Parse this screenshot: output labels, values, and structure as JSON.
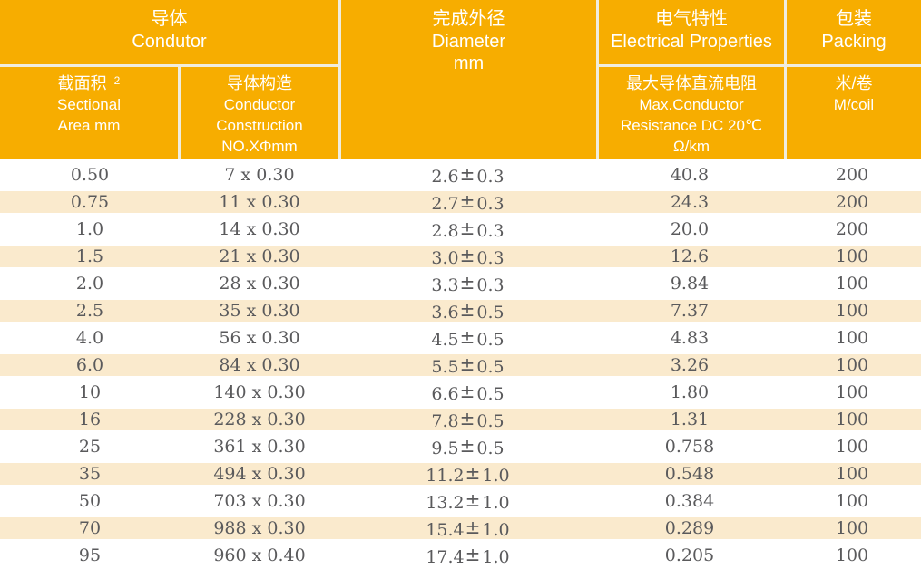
{
  "header": {
    "conductor": {
      "zh": "导体",
      "en": "Condutor"
    },
    "diameter": {
      "zh": "完成外径",
      "en": "Diameter",
      "unit": "mm"
    },
    "electrical": {
      "zh": "电气特性",
      "en": "Electrical Properties"
    },
    "packing": {
      "zh": "包装",
      "en": "Packing"
    },
    "sectional_area": {
      "zh": "截面积",
      "sup": "2",
      "en1": "Sectional",
      "en2": "Area mm"
    },
    "construction": {
      "zh": "导体构造",
      "en1": "Conductor",
      "en2": "Construction",
      "en3": "NO.XΦmm"
    },
    "resistance": {
      "zh": "最大导体直流电阻",
      "en1": "Max.Conductor",
      "en2": "Resistance DC 20℃",
      "en3": "Ω/km"
    },
    "coil": {
      "zh": "米/卷",
      "en": "M/coil"
    }
  },
  "pm_symbol": "±",
  "rows": [
    {
      "area": "0.50",
      "construction": "7 x 0.30",
      "diameter": "2.6",
      "tolerance": "0.3",
      "resistance": "40.8",
      "coil": "200",
      "highlight": false
    },
    {
      "area": "0.75",
      "construction": "11 x 0.30",
      "diameter": "2.7",
      "tolerance": "0.3",
      "resistance": "24.3",
      "coil": "200",
      "highlight": true
    },
    {
      "area": "1.0",
      "construction": "14 x 0.30",
      "diameter": "2.8",
      "tolerance": "0.3",
      "resistance": "20.0",
      "coil": "200",
      "highlight": false
    },
    {
      "area": "1.5",
      "construction": "21 x 0.30",
      "diameter": "3.0",
      "tolerance": "0.3",
      "resistance": "12.6",
      "coil": "100",
      "highlight": true
    },
    {
      "area": "2.0",
      "construction": "28 x 0.30",
      "diameter": "3.3",
      "tolerance": "0.3",
      "resistance": "9.84",
      "coil": "100",
      "highlight": false
    },
    {
      "area": "2.5",
      "construction": "35 x 0.30",
      "diameter": "3.6",
      "tolerance": "0.5",
      "resistance": "7.37",
      "coil": "100",
      "highlight": true
    },
    {
      "area": "4.0",
      "construction": "56 x 0.30",
      "diameter": "4.5",
      "tolerance": "0.5",
      "resistance": "4.83",
      "coil": "100",
      "highlight": false
    },
    {
      "area": "6.0",
      "construction": "84 x 0.30",
      "diameter": "5.5",
      "tolerance": "0.5",
      "resistance": "3.26",
      "coil": "100",
      "highlight": true
    },
    {
      "area": "10",
      "construction": "140 x 0.30",
      "diameter": "6.6",
      "tolerance": "0.5",
      "resistance": "1.80",
      "coil": "100",
      "highlight": false
    },
    {
      "area": "16",
      "construction": "228 x 0.30",
      "diameter": "7.8",
      "tolerance": "0.5",
      "resistance": "1.31",
      "coil": "100",
      "highlight": true
    },
    {
      "area": "25",
      "construction": "361 x 0.30",
      "diameter": "9.5",
      "tolerance": "0.5",
      "resistance": "0.758",
      "coil": "100",
      "highlight": false
    },
    {
      "area": "35",
      "construction": "494 x 0.30",
      "diameter": "11.2",
      "tolerance": "1.0",
      "resistance": "0.548",
      "coil": "100",
      "highlight": true
    },
    {
      "area": "50",
      "construction": "703 x 0.30",
      "diameter": "13.2",
      "tolerance": "1.0",
      "resistance": "0.384",
      "coil": "100",
      "highlight": false
    },
    {
      "area": "70",
      "construction": "988 x 0.30",
      "diameter": "15.4",
      "tolerance": "1.0",
      "resistance": "0.289",
      "coil": "100",
      "highlight": true
    },
    {
      "area": "95",
      "construction": "960 x 0.40",
      "diameter": "17.4",
      "tolerance": "1.0",
      "resistance": "0.205",
      "coil": "100",
      "highlight": false
    }
  ],
  "colors": {
    "header_bg": "#F7AD00",
    "header_text": "#FFFFFF",
    "row_highlight": "#FAEACD",
    "divider": "#F0EDDE",
    "text": "#5A5A5C"
  }
}
